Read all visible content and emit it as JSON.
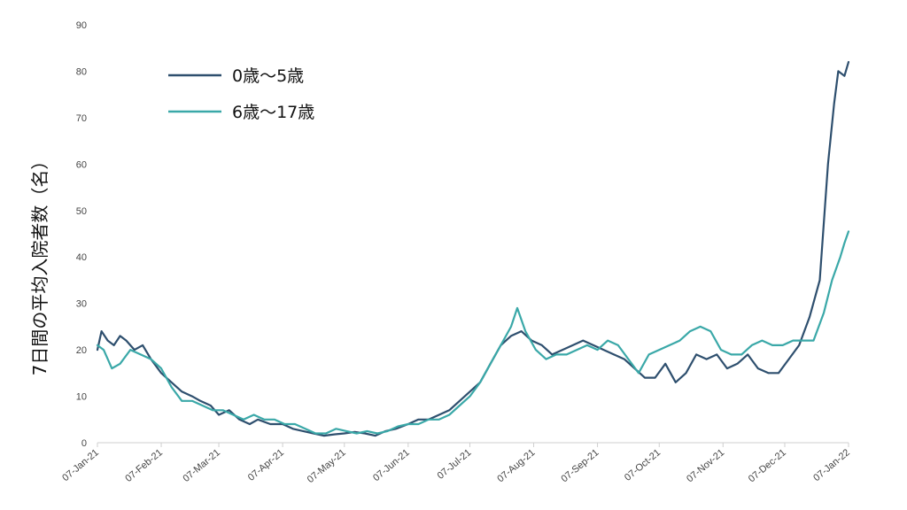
{
  "chart_data": {
    "type": "line",
    "title": "",
    "ylabel": "7日間の平均入院者数（名）",
    "xlabel": "",
    "ylim": [
      0,
      90
    ],
    "yticks": [
      0,
      10,
      20,
      30,
      40,
      50,
      60,
      70,
      80,
      90
    ],
    "x_range": [
      "2021-01-07",
      "2022-01-07"
    ],
    "x_tick_labels": [
      "07-Jan-21",
      "07-Feb-21",
      "07-Mar-21",
      "07-Apr-21",
      "07-May-21",
      "07-Jun-21",
      "07-Jul-21",
      "07-Aug-21",
      "07-Sep-21",
      "07-Oct-21",
      "07-Nov-21",
      "07-Dec-21",
      "07-Jan-22"
    ],
    "grid": false,
    "legend_position": "top-left",
    "series": [
      {
        "name": "0歳〜5歳",
        "color": "#2e4f6e",
        "points": [
          [
            "2021-01-07",
            20
          ],
          [
            "2021-01-09",
            24
          ],
          [
            "2021-01-12",
            22
          ],
          [
            "2021-01-15",
            21
          ],
          [
            "2021-01-18",
            23
          ],
          [
            "2021-01-21",
            22
          ],
          [
            "2021-01-25",
            20
          ],
          [
            "2021-01-29",
            21
          ],
          [
            "2021-02-02",
            18
          ],
          [
            "2021-02-07",
            15
          ],
          [
            "2021-02-12",
            13
          ],
          [
            "2021-02-17",
            11
          ],
          [
            "2021-02-22",
            10
          ],
          [
            "2021-02-26",
            9
          ],
          [
            "2021-03-03",
            8
          ],
          [
            "2021-03-07",
            6
          ],
          [
            "2021-03-12",
            7
          ],
          [
            "2021-03-17",
            5
          ],
          [
            "2021-03-22",
            4
          ],
          [
            "2021-03-26",
            5
          ],
          [
            "2021-04-01",
            4
          ],
          [
            "2021-04-07",
            4
          ],
          [
            "2021-04-12",
            3
          ],
          [
            "2021-04-17",
            2.5
          ],
          [
            "2021-04-22",
            2
          ],
          [
            "2021-04-27",
            1.5
          ],
          [
            "2021-05-02",
            1.8
          ],
          [
            "2021-05-07",
            2
          ],
          [
            "2021-05-12",
            2.3
          ],
          [
            "2021-05-17",
            2
          ],
          [
            "2021-05-22",
            1.5
          ],
          [
            "2021-05-27",
            2.5
          ],
          [
            "2021-06-01",
            3
          ],
          [
            "2021-06-07",
            4
          ],
          [
            "2021-06-12",
            5
          ],
          [
            "2021-06-17",
            5
          ],
          [
            "2021-06-22",
            6
          ],
          [
            "2021-06-27",
            7
          ],
          [
            "2021-07-02",
            9
          ],
          [
            "2021-07-07",
            11
          ],
          [
            "2021-07-12",
            13
          ],
          [
            "2021-07-17",
            17
          ],
          [
            "2021-07-22",
            21
          ],
          [
            "2021-07-27",
            23
          ],
          [
            "2021-08-01",
            24
          ],
          [
            "2021-08-06",
            22
          ],
          [
            "2021-08-11",
            21
          ],
          [
            "2021-08-16",
            19
          ],
          [
            "2021-08-21",
            20
          ],
          [
            "2021-08-26",
            21
          ],
          [
            "2021-08-31",
            22
          ],
          [
            "2021-09-05",
            21
          ],
          [
            "2021-09-10",
            20
          ],
          [
            "2021-09-15",
            19
          ],
          [
            "2021-09-20",
            18
          ],
          [
            "2021-09-25",
            16
          ],
          [
            "2021-09-30",
            14
          ],
          [
            "2021-10-05",
            14
          ],
          [
            "2021-10-10",
            17
          ],
          [
            "2021-10-15",
            13
          ],
          [
            "2021-10-20",
            15
          ],
          [
            "2021-10-25",
            19
          ],
          [
            "2021-10-30",
            18
          ],
          [
            "2021-11-04",
            19
          ],
          [
            "2021-11-09",
            16
          ],
          [
            "2021-11-14",
            17
          ],
          [
            "2021-11-19",
            19
          ],
          [
            "2021-11-24",
            16
          ],
          [
            "2021-11-29",
            15
          ],
          [
            "2021-12-04",
            15
          ],
          [
            "2021-12-09",
            18
          ],
          [
            "2021-12-14",
            21
          ],
          [
            "2021-12-19",
            27
          ],
          [
            "2021-12-24",
            35
          ],
          [
            "2021-12-28",
            60
          ],
          [
            "2021-12-31",
            73
          ],
          [
            "2022-01-02",
            80
          ],
          [
            "2022-01-05",
            79
          ],
          [
            "2022-01-07",
            82
          ]
        ]
      },
      {
        "name": "6歳〜17歳",
        "color": "#3aa8a8",
        "points": [
          [
            "2021-01-07",
            21
          ],
          [
            "2021-01-10",
            20
          ],
          [
            "2021-01-14",
            16
          ],
          [
            "2021-01-18",
            17
          ],
          [
            "2021-01-23",
            20
          ],
          [
            "2021-01-28",
            19
          ],
          [
            "2021-02-02",
            18
          ],
          [
            "2021-02-07",
            16
          ],
          [
            "2021-02-12",
            12
          ],
          [
            "2021-02-17",
            9
          ],
          [
            "2021-02-22",
            9
          ],
          [
            "2021-02-27",
            8
          ],
          [
            "2021-03-04",
            7
          ],
          [
            "2021-03-09",
            7
          ],
          [
            "2021-03-14",
            6
          ],
          [
            "2021-03-19",
            5
          ],
          [
            "2021-03-24",
            6
          ],
          [
            "2021-03-29",
            5
          ],
          [
            "2021-04-03",
            5
          ],
          [
            "2021-04-08",
            4
          ],
          [
            "2021-04-13",
            4
          ],
          [
            "2021-04-18",
            3
          ],
          [
            "2021-04-23",
            2
          ],
          [
            "2021-04-28",
            2
          ],
          [
            "2021-05-03",
            3
          ],
          [
            "2021-05-08",
            2.5
          ],
          [
            "2021-05-13",
            2
          ],
          [
            "2021-05-18",
            2.5
          ],
          [
            "2021-05-23",
            2
          ],
          [
            "2021-05-28",
            2.5
          ],
          [
            "2021-06-02",
            3.5
          ],
          [
            "2021-06-07",
            4
          ],
          [
            "2021-06-12",
            4
          ],
          [
            "2021-06-17",
            5
          ],
          [
            "2021-06-22",
            5
          ],
          [
            "2021-06-27",
            6
          ],
          [
            "2021-07-02",
            8
          ],
          [
            "2021-07-07",
            10
          ],
          [
            "2021-07-12",
            13
          ],
          [
            "2021-07-17",
            17
          ],
          [
            "2021-07-22",
            21
          ],
          [
            "2021-07-27",
            25
          ],
          [
            "2021-07-30",
            29
          ],
          [
            "2021-08-03",
            24
          ],
          [
            "2021-08-08",
            20
          ],
          [
            "2021-08-13",
            18
          ],
          [
            "2021-08-18",
            19
          ],
          [
            "2021-08-23",
            19
          ],
          [
            "2021-08-28",
            20
          ],
          [
            "2021-09-02",
            21
          ],
          [
            "2021-09-07",
            20
          ],
          [
            "2021-09-12",
            22
          ],
          [
            "2021-09-17",
            21
          ],
          [
            "2021-09-22",
            18
          ],
          [
            "2021-09-27",
            15
          ],
          [
            "2021-10-02",
            19
          ],
          [
            "2021-10-07",
            20
          ],
          [
            "2021-10-12",
            21
          ],
          [
            "2021-10-17",
            22
          ],
          [
            "2021-10-22",
            24
          ],
          [
            "2021-10-27",
            25
          ],
          [
            "2021-11-01",
            24
          ],
          [
            "2021-11-06",
            20
          ],
          [
            "2021-11-11",
            19
          ],
          [
            "2021-11-16",
            19
          ],
          [
            "2021-11-21",
            21
          ],
          [
            "2021-11-26",
            22
          ],
          [
            "2021-12-01",
            21
          ],
          [
            "2021-12-06",
            21
          ],
          [
            "2021-12-11",
            22
          ],
          [
            "2021-12-16",
            22
          ],
          [
            "2021-12-21",
            22
          ],
          [
            "2021-12-26",
            28
          ],
          [
            "2021-12-30",
            35
          ],
          [
            "2022-01-03",
            40
          ],
          [
            "2022-01-05",
            43
          ],
          [
            "2022-01-07",
            45.5
          ]
        ]
      }
    ]
  }
}
